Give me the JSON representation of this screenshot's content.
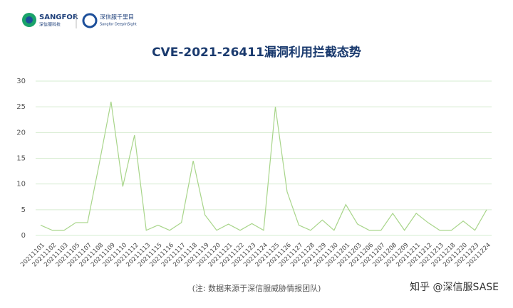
{
  "header": {
    "brand": "SANGFOR",
    "brand_sub": "深信服科技",
    "product": "深信服千里目",
    "product_sub": "Sangfor DeepInSight"
  },
  "chart_data": {
    "type": "line",
    "title": "CVE-2021-26411漏洞利用拦截态势",
    "categories": [
      "20211101",
      "20211102",
      "20211103",
      "20211105",
      "20211107",
      "20211108",
      "20211109",
      "20211110",
      "20211112",
      "20211113",
      "20211115",
      "20211116",
      "20211117",
      "20211118",
      "20211119",
      "20211120",
      "20211121",
      "20211122",
      "20211123",
      "20211124",
      "20211125",
      "20211126",
      "20211127",
      "20211128",
      "20211129",
      "20211130",
      "20211201",
      "20211203",
      "20211206",
      "20211207",
      "20211208",
      "20211209",
      "20211211",
      "20211212",
      "20211213",
      "20211218",
      "20211220",
      "20211223",
      "20211224"
    ],
    "values": [
      2,
      1,
      1,
      2.5,
      2.5,
      14,
      26,
      9.5,
      19.5,
      1,
      2,
      1,
      2.5,
      14.5,
      4,
      1,
      2.2,
      1,
      2.3,
      1,
      25,
      8.5,
      2,
      1,
      3,
      1,
      6,
      2.2,
      1,
      1,
      4.3,
      1,
      4.3,
      2.5,
      1,
      1,
      2.8,
      1,
      5
    ],
    "color": "#a8d58a",
    "ylim": [
      0,
      30
    ],
    "yticks": [
      0,
      5,
      10,
      15,
      20,
      25,
      30
    ],
    "grid": true
  },
  "footer": {
    "note": "(注: 数据来源于深信服威胁情报团队)",
    "watermark": "知乎 @深信服SASE"
  }
}
